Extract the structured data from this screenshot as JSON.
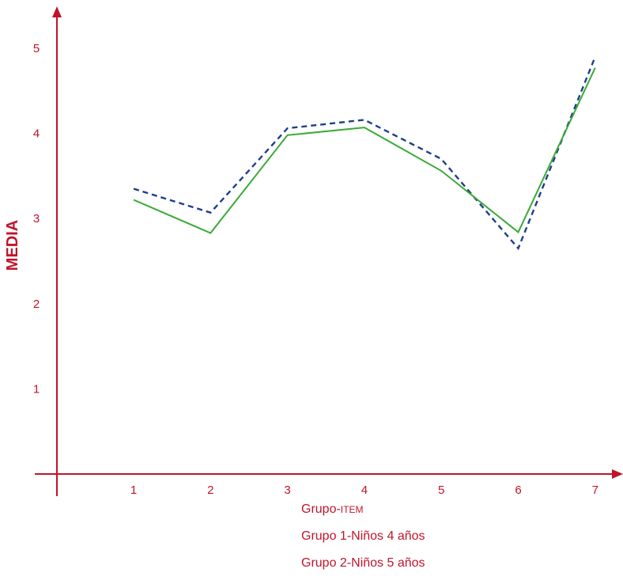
{
  "chart_data": {
    "type": "line",
    "ylabel": "MEDIA",
    "xlabel": "",
    "x": [
      1,
      2,
      3,
      4,
      5,
      6,
      7
    ],
    "x_tick_labels": [
      "1",
      "2",
      "3",
      "4",
      "5",
      "6",
      "7"
    ],
    "y_tick_labels": [
      "1",
      "2",
      "3",
      "4",
      "5"
    ],
    "ylim": [
      0,
      5.5
    ],
    "series": [
      {
        "values": [
          3.35,
          3.07,
          4.06,
          4.16,
          3.7,
          2.65,
          4.9
        ],
        "color": "#1f3f8a",
        "style": "dashed"
      },
      {
        "values": [
          3.22,
          2.83,
          3.98,
          4.07,
          3.56,
          2.84,
          4.77
        ],
        "color": "#3aaa35",
        "style": "solid"
      }
    ],
    "axis_color": "#c0142b",
    "legend": {
      "title": "Grupo-",
      "title_suffix": "ITEM",
      "items": [
        "Grupo 1-Niños 4 años",
        "Grupo 2-Niños 5 años"
      ]
    }
  }
}
